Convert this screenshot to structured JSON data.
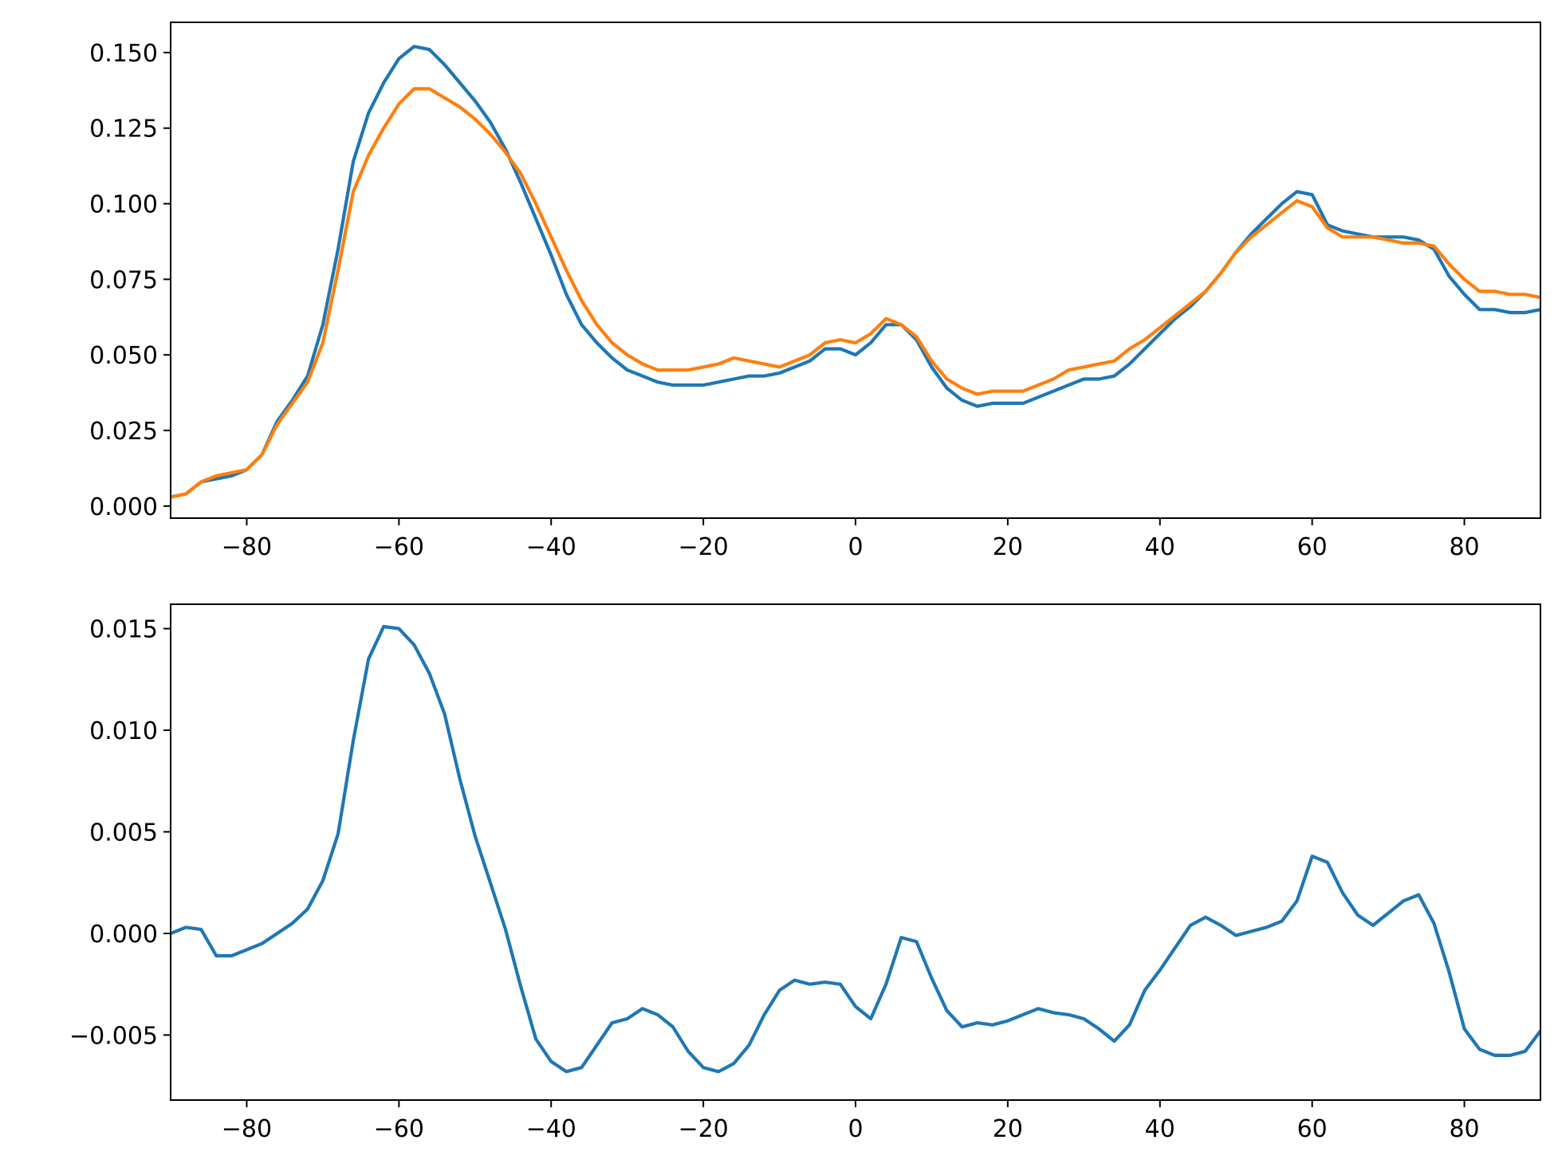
{
  "chart_data": [
    {
      "type": "line",
      "xlim": [
        -90,
        90
      ],
      "ylim": [
        -0.004,
        0.16
      ],
      "x_ticks": [
        -80,
        -60,
        -40,
        -20,
        0,
        20,
        40,
        60,
        80
      ],
      "x_tick_labels": [
        "−80",
        "−60",
        "−40",
        "−20",
        "0",
        "20",
        "40",
        "60",
        "80"
      ],
      "y_ticks": [
        0.0,
        0.025,
        0.05,
        0.075,
        0.1,
        0.125,
        0.15
      ],
      "y_tick_labels": [
        "0.000",
        "0.025",
        "0.050",
        "0.075",
        "0.100",
        "0.125",
        "0.150"
      ],
      "grid": false,
      "series": [
        {
          "color": "#1f77b4",
          "x": [
            -90,
            -88,
            -86,
            -84,
            -82,
            -80,
            -78,
            -76,
            -74,
            -72,
            -70,
            -68,
            -66,
            -64,
            -62,
            -60,
            -58,
            -56,
            -54,
            -52,
            -50,
            -48,
            -46,
            -44,
            -42,
            -40,
            -38,
            -36,
            -34,
            -32,
            -30,
            -28,
            -26,
            -24,
            -22,
            -20,
            -18,
            -16,
            -14,
            -12,
            -10,
            -8,
            -6,
            -4,
            -2,
            0,
            2,
            4,
            6,
            8,
            10,
            12,
            14,
            16,
            18,
            20,
            22,
            24,
            26,
            28,
            30,
            32,
            34,
            36,
            38,
            40,
            42,
            44,
            46,
            48,
            50,
            52,
            54,
            56,
            58,
            60,
            62,
            64,
            66,
            68,
            70,
            72,
            74,
            76,
            78,
            80,
            82,
            84,
            86,
            88,
            90
          ],
          "y": [
            0.003,
            0.004,
            0.008,
            0.009,
            0.01,
            0.012,
            0.017,
            0.028,
            0.035,
            0.043,
            0.06,
            0.085,
            0.114,
            0.13,
            0.14,
            0.148,
            0.152,
            0.151,
            0.146,
            0.14,
            0.134,
            0.127,
            0.118,
            0.107,
            0.095,
            0.083,
            0.07,
            0.06,
            0.054,
            0.049,
            0.045,
            0.043,
            0.041,
            0.04,
            0.04,
            0.04,
            0.041,
            0.042,
            0.043,
            0.043,
            0.044,
            0.046,
            0.048,
            0.052,
            0.052,
            0.05,
            0.054,
            0.06,
            0.06,
            0.055,
            0.046,
            0.039,
            0.035,
            0.033,
            0.034,
            0.034,
            0.034,
            0.036,
            0.038,
            0.04,
            0.042,
            0.042,
            0.043,
            0.047,
            0.052,
            0.057,
            0.062,
            0.066,
            0.071,
            0.077,
            0.084,
            0.09,
            0.095,
            0.1,
            0.104,
            0.103,
            0.093,
            0.091,
            0.09,
            0.089,
            0.089,
            0.089,
            0.088,
            0.085,
            0.076,
            0.07,
            0.065,
            0.065,
            0.064,
            0.064,
            0.065
          ]
        },
        {
          "color": "#ff7f0e",
          "x": [
            -90,
            -88,
            -86,
            -84,
            -82,
            -80,
            -78,
            -76,
            -74,
            -72,
            -70,
            -68,
            -66,
            -64,
            -62,
            -60,
            -58,
            -56,
            -54,
            -52,
            -50,
            -48,
            -46,
            -44,
            -42,
            -40,
            -38,
            -36,
            -34,
            -32,
            -30,
            -28,
            -26,
            -24,
            -22,
            -20,
            -18,
            -16,
            -14,
            -12,
            -10,
            -8,
            -6,
            -4,
            -2,
            0,
            2,
            4,
            6,
            8,
            10,
            12,
            14,
            16,
            18,
            20,
            22,
            24,
            26,
            28,
            30,
            32,
            34,
            36,
            38,
            40,
            42,
            44,
            46,
            48,
            50,
            52,
            54,
            56,
            58,
            60,
            62,
            64,
            66,
            68,
            70,
            72,
            74,
            76,
            78,
            80,
            82,
            84,
            86,
            88,
            90
          ],
          "y": [
            0.003,
            0.004,
            0.008,
            0.01,
            0.011,
            0.012,
            0.017,
            0.027,
            0.034,
            0.041,
            0.054,
            0.078,
            0.104,
            0.116,
            0.125,
            0.133,
            0.138,
            0.138,
            0.135,
            0.132,
            0.128,
            0.123,
            0.117,
            0.11,
            0.1,
            0.089,
            0.078,
            0.068,
            0.06,
            0.054,
            0.05,
            0.047,
            0.045,
            0.045,
            0.045,
            0.046,
            0.047,
            0.049,
            0.048,
            0.047,
            0.046,
            0.048,
            0.05,
            0.054,
            0.055,
            0.054,
            0.057,
            0.062,
            0.06,
            0.056,
            0.048,
            0.042,
            0.039,
            0.037,
            0.038,
            0.038,
            0.038,
            0.04,
            0.042,
            0.045,
            0.046,
            0.047,
            0.048,
            0.052,
            0.055,
            0.059,
            0.063,
            0.067,
            0.071,
            0.077,
            0.084,
            0.089,
            0.093,
            0.097,
            0.101,
            0.099,
            0.092,
            0.089,
            0.089,
            0.089,
            0.088,
            0.087,
            0.087,
            0.086,
            0.08,
            0.075,
            0.071,
            0.071,
            0.07,
            0.07,
            0.069
          ]
        }
      ]
    },
    {
      "type": "line",
      "xlim": [
        -90,
        90
      ],
      "ylim": [
        -0.0082,
        0.0162
      ],
      "x_ticks": [
        -80,
        -60,
        -40,
        -20,
        0,
        20,
        40,
        60,
        80
      ],
      "x_tick_labels": [
        "−80",
        "−60",
        "−40",
        "−20",
        "0",
        "20",
        "40",
        "60",
        "80"
      ],
      "y_ticks": [
        -0.005,
        0.0,
        0.005,
        0.01,
        0.015
      ],
      "y_tick_labels": [
        "−0.005",
        "0.000",
        "0.005",
        "0.010",
        "0.015"
      ],
      "grid": false,
      "series": [
        {
          "color": "#1f77b4",
          "x": [
            -90,
            -88,
            -86,
            -84,
            -82,
            -80,
            -78,
            -76,
            -74,
            -72,
            -70,
            -68,
            -66,
            -64,
            -62,
            -60,
            -58,
            -56,
            -54,
            -52,
            -50,
            -48,
            -46,
            -44,
            -42,
            -40,
            -38,
            -36,
            -34,
            -32,
            -30,
            -28,
            -26,
            -24,
            -22,
            -20,
            -18,
            -16,
            -14,
            -12,
            -10,
            -8,
            -6,
            -4,
            -2,
            0,
            2,
            4,
            6,
            8,
            10,
            12,
            14,
            16,
            18,
            20,
            22,
            24,
            26,
            28,
            30,
            32,
            34,
            36,
            38,
            40,
            42,
            44,
            46,
            48,
            50,
            52,
            54,
            56,
            58,
            60,
            62,
            64,
            66,
            68,
            70,
            72,
            74,
            76,
            78,
            80,
            82,
            84,
            86,
            88,
            90
          ],
          "y": [
            0.0,
            0.0003,
            0.0002,
            -0.0011,
            -0.0011,
            -0.0008,
            -0.0005,
            0.0,
            0.0005,
            0.0012,
            0.0026,
            0.0049,
            0.0095,
            0.0135,
            0.0151,
            0.015,
            0.0142,
            0.0128,
            0.0108,
            0.0076,
            0.0048,
            0.0025,
            0.0002,
            -0.0026,
            -0.0052,
            -0.0063,
            -0.0068,
            -0.0066,
            -0.0055,
            -0.0044,
            -0.0042,
            -0.0037,
            -0.004,
            -0.0046,
            -0.0058,
            -0.0066,
            -0.0068,
            -0.0064,
            -0.0055,
            -0.004,
            -0.0028,
            -0.0023,
            -0.0025,
            -0.0024,
            -0.0025,
            -0.0036,
            -0.0042,
            -0.0025,
            -0.0002,
            -0.0004,
            -0.0022,
            -0.0038,
            -0.0046,
            -0.0044,
            -0.0045,
            -0.0043,
            -0.004,
            -0.0037,
            -0.0039,
            -0.004,
            -0.0042,
            -0.0047,
            -0.0053,
            -0.0045,
            -0.0028,
            -0.0018,
            -0.0007,
            0.0004,
            0.0008,
            0.0004,
            -0.0001,
            0.0001,
            0.0003,
            0.0006,
            0.0016,
            0.0038,
            0.0035,
            0.002,
            0.0009,
            0.0004,
            0.001,
            0.0016,
            0.0019,
            0.0005,
            -0.0019,
            -0.0047,
            -0.0057,
            -0.006,
            -0.006,
            -0.0058,
            -0.0048
          ]
        }
      ]
    }
  ]
}
